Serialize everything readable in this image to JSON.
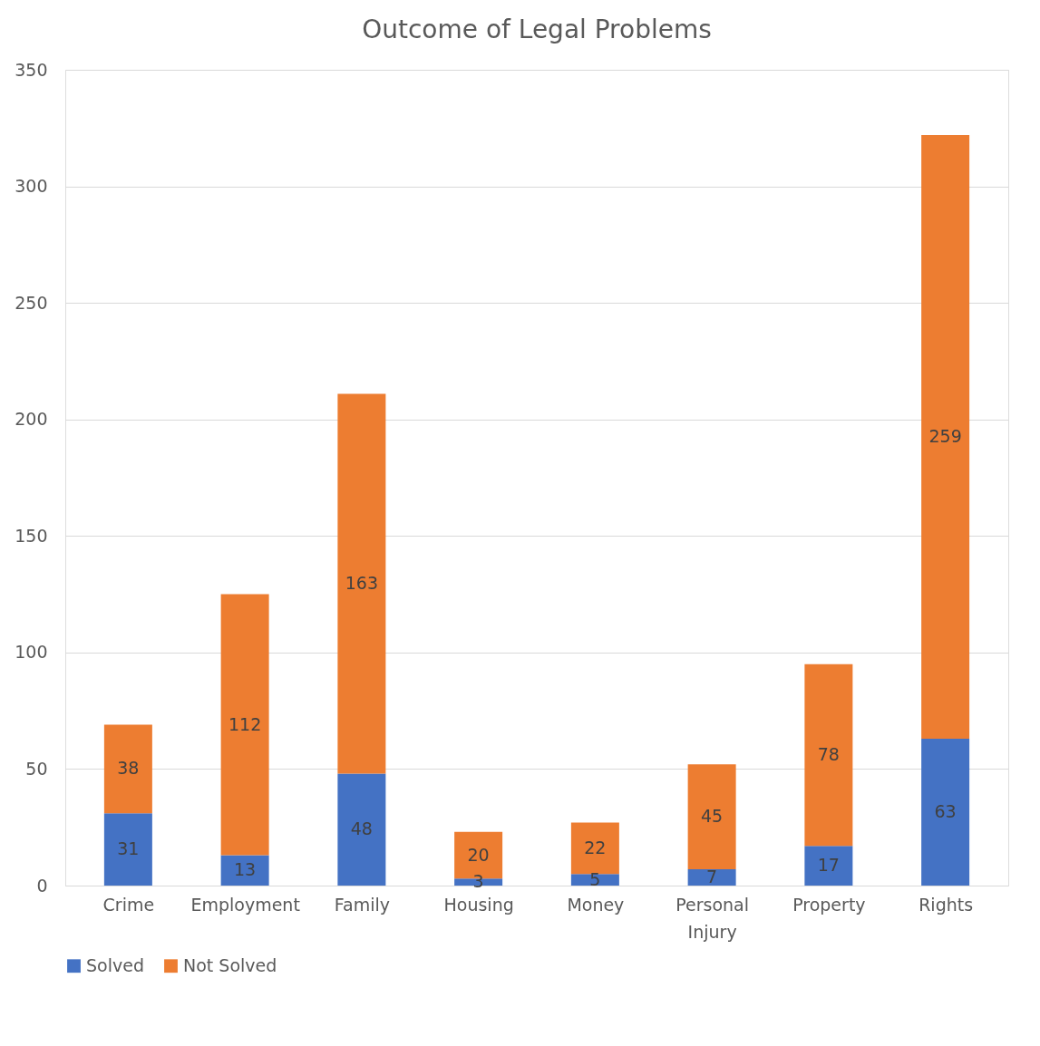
{
  "chart_data": {
    "type": "bar",
    "title": "Outcome of Legal Problems",
    "categories": [
      "Crime",
      "Employment",
      "Family",
      "Housing",
      "Money",
      "Personal Injury",
      "Property",
      "Rights"
    ],
    "series": [
      {
        "name": "Solved",
        "color": "#4472c4",
        "values": [
          31,
          13,
          48,
          3,
          5,
          7,
          17,
          63
        ]
      },
      {
        "name": "Not Solved",
        "color": "#ed7d31",
        "values": [
          38,
          112,
          163,
          20,
          22,
          45,
          78,
          259
        ]
      }
    ],
    "stacked": true,
    "ylim": [
      0,
      350
    ],
    "yticks": [
      0,
      50,
      100,
      150,
      200,
      250,
      300,
      350
    ],
    "grid": "y",
    "legend": "bottom",
    "data_labels": true
  }
}
